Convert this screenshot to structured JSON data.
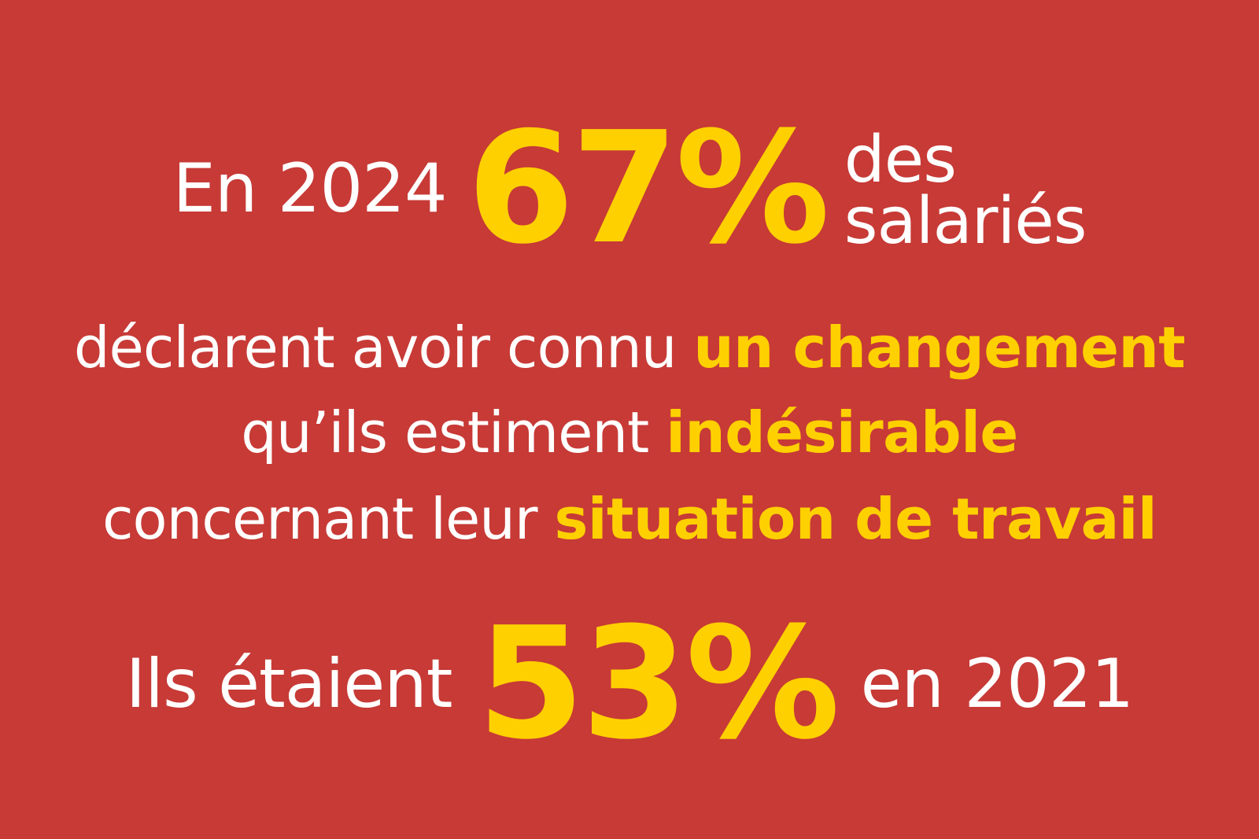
{
  "colors": {
    "background": "#c73a36",
    "text": "#ffffff",
    "accent": "#ffd000"
  },
  "headline": {
    "lead": "En 2024",
    "stat": "67%",
    "after_line1": "des",
    "after_line2": "salariés"
  },
  "body": {
    "line1_plain": "déclarent avoir connu",
    "line1_bold": "un changement",
    "line2_plain": "qu’ils estiment",
    "line2_bold": "indésirable",
    "line3_plain": "concernant leur",
    "line3_bold": "situation de travail"
  },
  "footer": {
    "lead": "Ils étaient",
    "stat": "53%",
    "trail": "en 2021"
  }
}
